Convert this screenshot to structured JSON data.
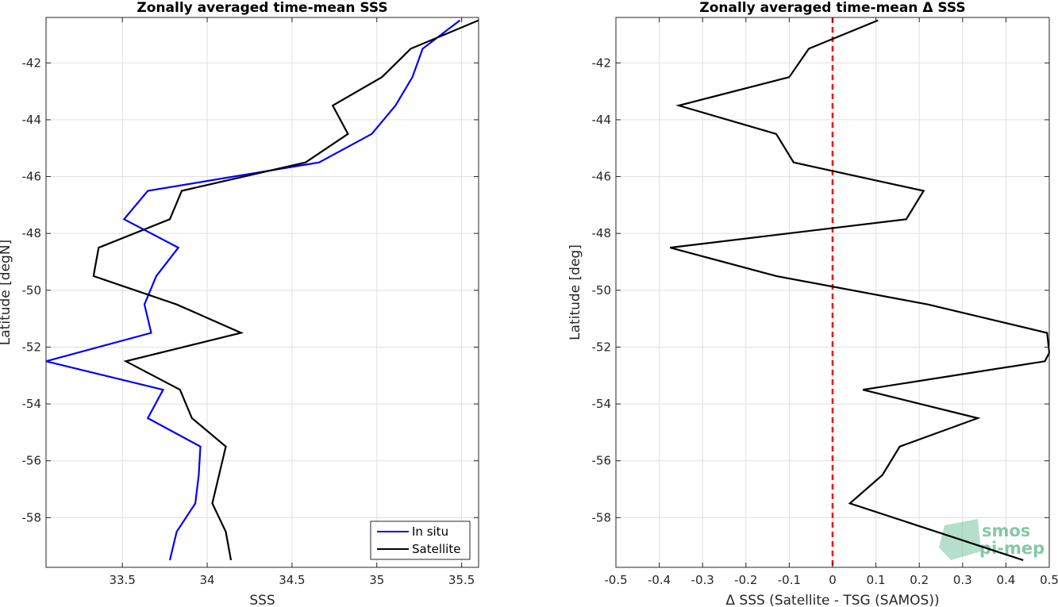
{
  "chart_data": [
    {
      "type": "line",
      "title": "Zonally averaged time-mean SSS",
      "xlabel": "SSS",
      "ylabel": "Latitude [degN]",
      "xlim": [
        33.05,
        35.6
      ],
      "ylim": [
        -59.75,
        -40.4
      ],
      "xticks": [
        33.5,
        34,
        34.5,
        35,
        35.5
      ],
      "xtick_labels": [
        "33.5",
        "34",
        "34.5",
        "35",
        "35.5"
      ],
      "yticks": [
        -42,
        -44,
        -46,
        -48,
        -50,
        -52,
        -54,
        -56,
        -58
      ],
      "ytick_labels": [
        "-42",
        "-44",
        "-46",
        "-48",
        "-50",
        "-52",
        "-54",
        "-56",
        "-58"
      ],
      "grid": true,
      "legend_position": "bottom-right",
      "y": [
        -40.5,
        -41.5,
        -42.5,
        -43.5,
        -44.5,
        -45.5,
        -46.5,
        -47.5,
        -48.5,
        -49.5,
        -50.5,
        -51.5,
        -52.5,
        -53.5,
        -54.5,
        -55.5,
        -56.5,
        -57.5,
        -58.5,
        -59.5
      ],
      "series": [
        {
          "name": "In situ",
          "color": "#0000ff",
          "x": [
            35.49,
            35.27,
            35.21,
            35.11,
            34.97,
            34.66,
            33.65,
            33.51,
            33.83,
            33.7,
            33.63,
            33.67,
            33.05,
            33.74,
            33.65,
            33.96,
            33.95,
            33.93,
            33.82,
            33.78
          ]
        },
        {
          "name": "Satellite",
          "color": "#000000",
          "x": [
            35.6,
            35.2,
            35.03,
            34.74,
            34.83,
            34.58,
            33.85,
            33.78,
            33.36,
            33.33,
            33.82,
            34.2,
            33.52,
            33.84,
            33.91,
            34.11,
            34.07,
            34.03,
            34.11,
            34.14
          ]
        }
      ]
    },
    {
      "type": "line",
      "title": "Zonally averaged time-mean Δ SSS",
      "xlabel": "Δ SSS (Satellite - TSG (SAMOS))",
      "ylabel": "Latitude [deg]",
      "xlim": [
        -0.5,
        0.5
      ],
      "ylim": [
        -59.75,
        -40.4
      ],
      "xticks": [
        -0.5,
        -0.4,
        -0.3,
        -0.2,
        -0.1,
        0,
        0.1,
        0.2,
        0.3,
        0.4,
        0.5
      ],
      "xtick_labels": [
        "-0.5",
        "-0.4",
        "-0.3",
        "-0.2",
        "-0.1",
        "0",
        "0.1",
        "0.2",
        "0.3",
        "0.4",
        "0.5"
      ],
      "yticks": [
        -42,
        -44,
        -46,
        -48,
        -50,
        -52,
        -54,
        -56,
        -58
      ],
      "ytick_labels": [
        "-42",
        "-44",
        "-46",
        "-48",
        "-50",
        "-52",
        "-54",
        "-56",
        "-58"
      ],
      "grid": true,
      "reference_line": {
        "x": 0,
        "color": "#ff0000",
        "style": "dashed"
      },
      "y": [
        -40.5,
        -41.5,
        -42.5,
        -43.5,
        -44.5,
        -45.5,
        -46.5,
        -47.5,
        -48.5,
        -49.5,
        -50.5,
        -51.5,
        -52.2,
        -52.5,
        -53.5,
        -54.5,
        -55.5,
        -56.5,
        -57.5,
        -59.5
      ],
      "series": [
        {
          "color": "#000000",
          "x": [
            0.105,
            -0.055,
            -0.1,
            -0.355,
            -0.13,
            -0.09,
            0.21,
            0.17,
            -0.375,
            -0.13,
            0.22,
            0.495,
            0.5,
            0.49,
            0.07,
            0.335,
            0.155,
            0.115,
            0.04,
            0.44
          ]
        }
      ]
    }
  ],
  "watermark": {
    "line1": "smos",
    "line2": "pi-mep",
    "color": "#5cb88a"
  }
}
